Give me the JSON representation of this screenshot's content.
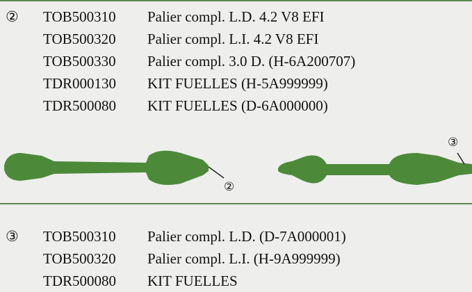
{
  "sections": [
    {
      "marker": "②",
      "items": [
        {
          "code": "TOB500310",
          "description": "Palier compl. L.D. 4.2 V8 EFI"
        },
        {
          "code": "TOB500320",
          "description": "Palier compl. L.I. 4.2 V8 EFI"
        },
        {
          "code": "TOB500330",
          "description": "Palier compl. 3.0 D. (H-6A200707)"
        },
        {
          "code": "TDR000130",
          "description": "KIT FUELLES (H-5A999999)"
        },
        {
          "code": "TDR500080",
          "description": "KIT FUELLES (D-6A000000)"
        }
      ]
    },
    {
      "marker": "③",
      "items": [
        {
          "code": "TOB500310",
          "description": "Palier compl. L.D. (D-7A000001)"
        },
        {
          "code": "TOB500320",
          "description": "Palier compl. L.I. (H-9A999999)"
        },
        {
          "code": "TDR500080",
          "description": "KIT FUELLES"
        }
      ]
    }
  ],
  "illustration": {
    "callouts": [
      "②",
      "③"
    ]
  }
}
